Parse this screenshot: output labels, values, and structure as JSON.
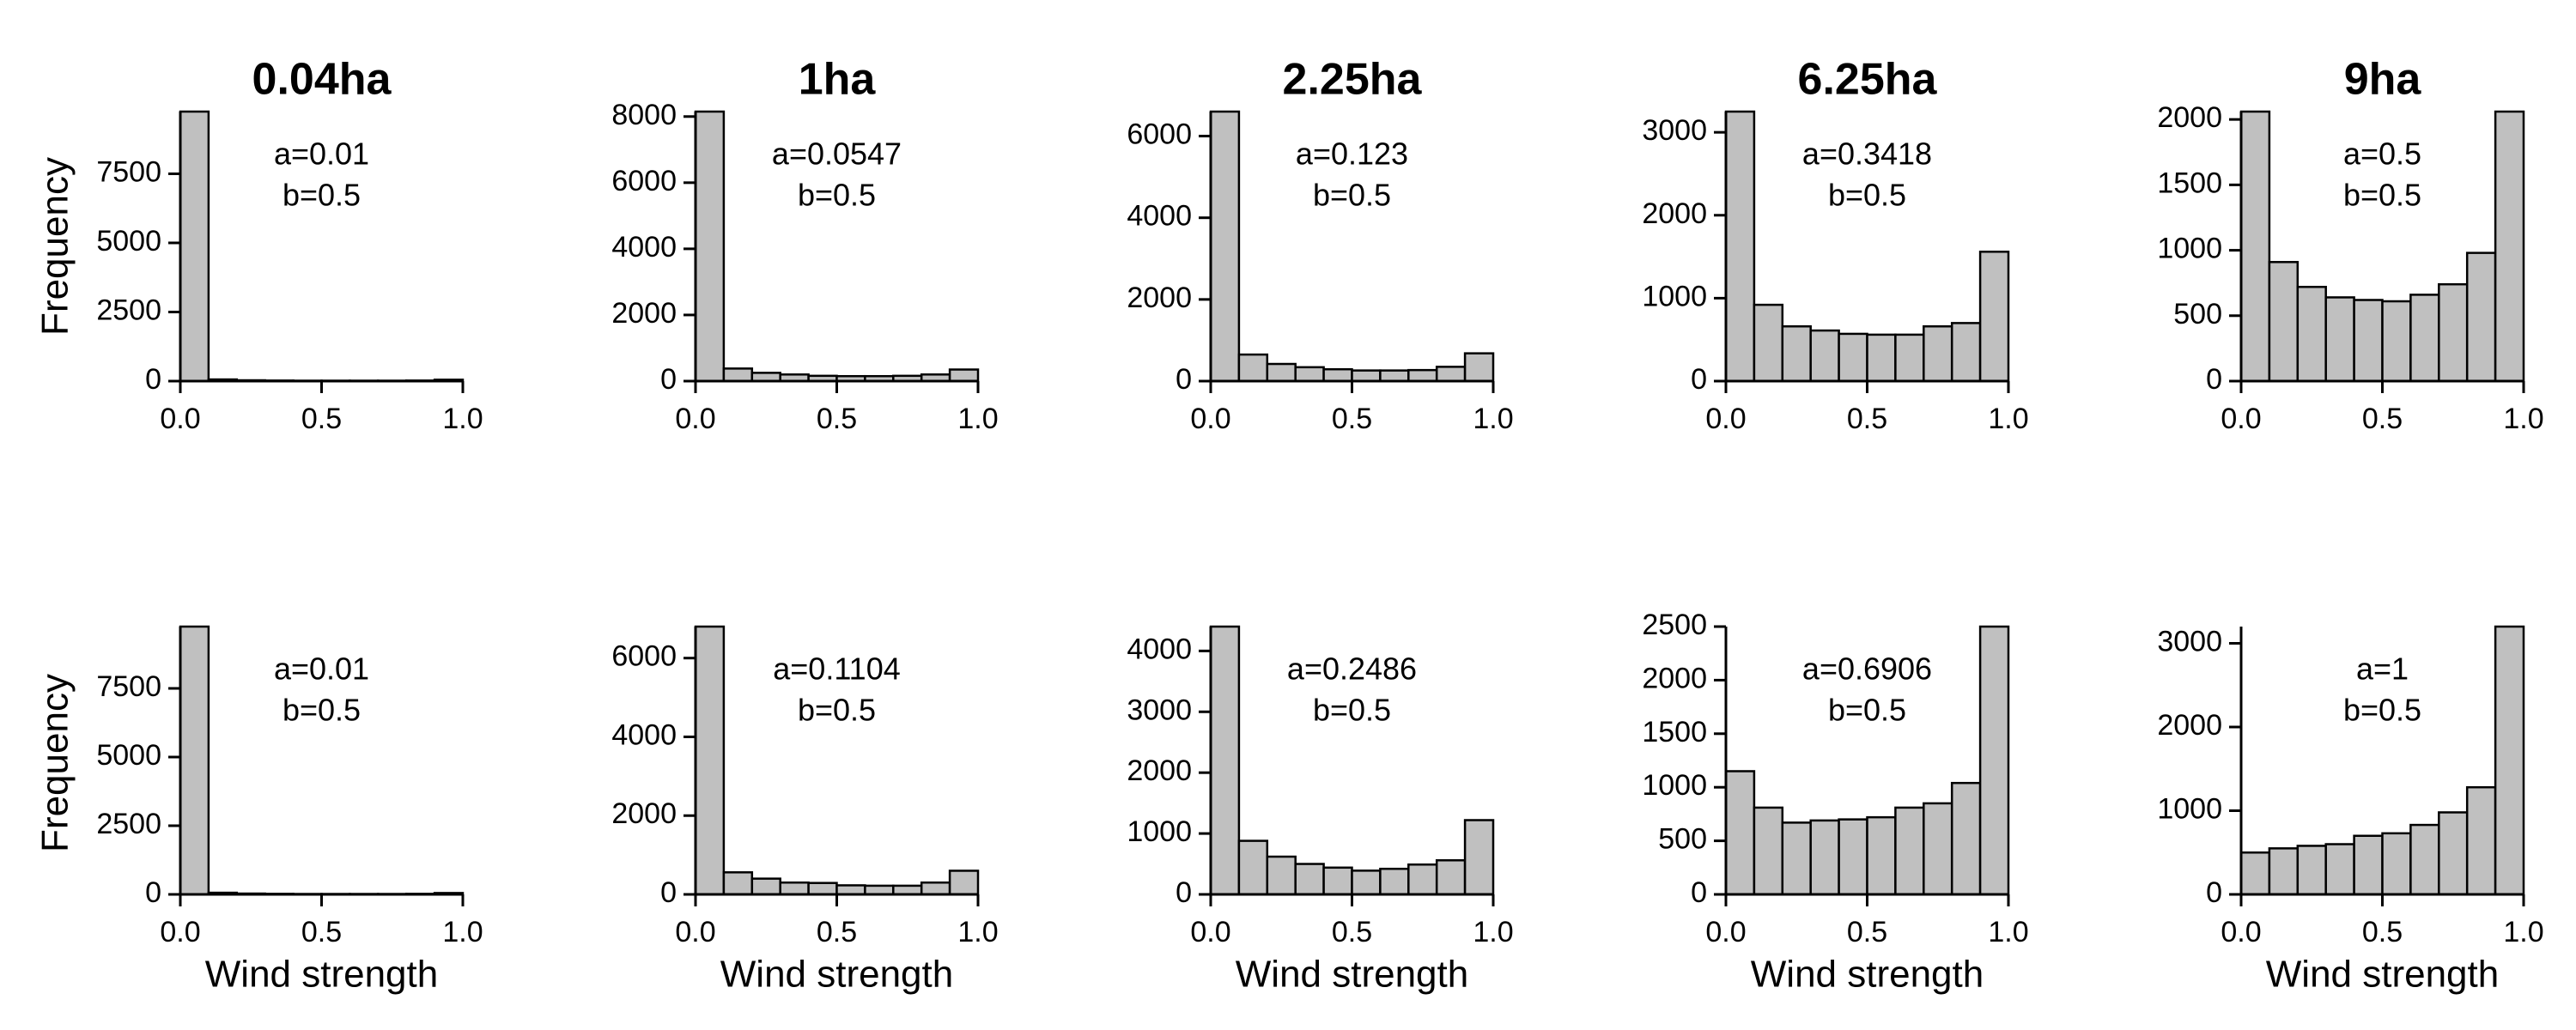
{
  "chart_data": [
    {
      "type": "histogram",
      "title": "0.04ha",
      "annotations": [
        "a=0.01",
        "b=0.5"
      ],
      "ylabel": "Frequency",
      "bins": [
        0,
        0.1,
        0.2,
        0.3,
        0.4,
        0.5,
        0.6,
        0.7,
        0.8,
        0.9,
        1.0
      ],
      "counts": [
        9750,
        60,
        30,
        20,
        15,
        15,
        15,
        15,
        20,
        50
      ],
      "xlim": [
        0,
        1
      ],
      "xticks": [
        {
          "value": 0,
          "label": "0.0"
        },
        0.5,
        {
          "value": 1,
          "label": "1.0"
        }
      ],
      "ylim": [
        0,
        9750
      ],
      "yticks": [
        0,
        2500,
        5000,
        7500
      ],
      "color": "#c0c0c0"
    },
    {
      "type": "histogram",
      "title": "1ha",
      "annotations": [
        "a=0.0547",
        "b=0.5"
      ],
      "bins": [
        0,
        0.1,
        0.2,
        0.3,
        0.4,
        0.5,
        0.6,
        0.7,
        0.8,
        0.9,
        1.0
      ],
      "counts": [
        8150,
        380,
        250,
        200,
        160,
        150,
        150,
        160,
        200,
        350
      ],
      "xlim": [
        0,
        1
      ],
      "xticks": [
        {
          "value": 0,
          "label": "0.0"
        },
        0.5,
        {
          "value": 1,
          "label": "1.0"
        }
      ],
      "ylim": [
        0,
        8150
      ],
      "yticks": [
        0,
        2000,
        4000,
        6000,
        8000
      ],
      "color": "#c0c0c0"
    },
    {
      "type": "histogram",
      "title": "2.25ha",
      "annotations": [
        "a=0.123",
        "b=0.5"
      ],
      "bins": [
        0,
        0.1,
        0.2,
        0.3,
        0.4,
        0.5,
        0.6,
        0.7,
        0.8,
        0.9,
        1.0
      ],
      "counts": [
        6600,
        650,
        420,
        340,
        290,
        260,
        260,
        270,
        350,
        680
      ],
      "xlim": [
        0,
        1
      ],
      "xticks": [
        {
          "value": 0,
          "label": "0.0"
        },
        0.5,
        {
          "value": 1,
          "label": "1.0"
        }
      ],
      "ylim": [
        0,
        6600
      ],
      "yticks": [
        0,
        2000,
        4000,
        6000
      ],
      "color": "#c0c0c0"
    },
    {
      "type": "histogram",
      "title": "6.25ha",
      "annotations": [
        "a=0.3418",
        "b=0.5"
      ],
      "bins": [
        0,
        0.1,
        0.2,
        0.3,
        0.4,
        0.5,
        0.6,
        0.7,
        0.8,
        0.9,
        1.0
      ],
      "counts": [
        3250,
        920,
        660,
        610,
        570,
        560,
        560,
        660,
        700,
        1560
      ],
      "xlim": [
        0,
        1
      ],
      "xticks": [
        {
          "value": 0,
          "label": "0.0"
        },
        0.5,
        {
          "value": 1,
          "label": "1.0"
        }
      ],
      "ylim": [
        0,
        3250
      ],
      "yticks": [
        0,
        1000,
        2000,
        3000
      ],
      "color": "#c0c0c0"
    },
    {
      "type": "histogram",
      "title": "9ha",
      "annotations": [
        "a=0.5",
        "b=0.5"
      ],
      "bins": [
        0,
        0.1,
        0.2,
        0.3,
        0.4,
        0.5,
        0.6,
        0.7,
        0.8,
        0.9,
        1.0
      ],
      "counts": [
        2060,
        910,
        720,
        640,
        620,
        610,
        660,
        740,
        980,
        2060
      ],
      "xlim": [
        0,
        1
      ],
      "xticks": [
        {
          "value": 0,
          "label": "0.0"
        },
        0.5,
        {
          "value": 1,
          "label": "1.0"
        }
      ],
      "ylim": [
        0,
        2060
      ],
      "yticks": [
        0,
        500,
        1000,
        1500,
        2000
      ],
      "color": "#c0c0c0"
    },
    {
      "type": "histogram",
      "annotations": [
        "a=0.01",
        "b=0.5"
      ],
      "ylabel": "Frequency",
      "xlabel": "Wind strength",
      "bins": [
        0,
        0.1,
        0.2,
        0.3,
        0.4,
        0.5,
        0.6,
        0.7,
        0.8,
        0.9,
        1.0
      ],
      "counts": [
        9750,
        60,
        30,
        20,
        15,
        15,
        15,
        15,
        20,
        50
      ],
      "xlim": [
        0,
        1
      ],
      "xticks": [
        {
          "value": 0,
          "label": "0.0"
        },
        0.5,
        {
          "value": 1,
          "label": "1.0"
        }
      ],
      "ylim": [
        0,
        9750
      ],
      "yticks": [
        0,
        2500,
        5000,
        7500
      ],
      "color": "#c0c0c0"
    },
    {
      "type": "histogram",
      "annotations": [
        "a=0.1104",
        "b=0.5"
      ],
      "xlabel": "Wind strength",
      "bins": [
        0,
        0.1,
        0.2,
        0.3,
        0.4,
        0.5,
        0.6,
        0.7,
        0.8,
        0.9,
        1.0
      ],
      "counts": [
        6800,
        560,
        400,
        300,
        290,
        230,
        220,
        220,
        300,
        600
      ],
      "xlim": [
        0,
        1
      ],
      "xticks": [
        {
          "value": 0,
          "label": "0.0"
        },
        0.5,
        {
          "value": 1,
          "label": "1.0"
        }
      ],
      "ylim": [
        0,
        6800
      ],
      "yticks": [
        0,
        2000,
        4000,
        6000
      ],
      "color": "#c0c0c0"
    },
    {
      "type": "histogram",
      "annotations": [
        "a=0.2486",
        "b=0.5"
      ],
      "xlabel": "Wind strength",
      "bins": [
        0,
        0.1,
        0.2,
        0.3,
        0.4,
        0.5,
        0.6,
        0.7,
        0.8,
        0.9,
        1.0
      ],
      "counts": [
        4400,
        880,
        620,
        500,
        440,
        390,
        420,
        490,
        560,
        1220
      ],
      "xlim": [
        0,
        1
      ],
      "xticks": [
        {
          "value": 0,
          "label": "0.0"
        },
        0.5,
        {
          "value": 1,
          "label": "1.0"
        }
      ],
      "ylim": [
        0,
        4400
      ],
      "yticks": [
        0,
        1000,
        2000,
        3000,
        4000
      ],
      "color": "#c0c0c0"
    },
    {
      "type": "histogram",
      "annotations": [
        "a=0.6906",
        "b=0.5"
      ],
      "xlabel": "Wind strength",
      "bins": [
        0,
        0.1,
        0.2,
        0.3,
        0.4,
        0.5,
        0.6,
        0.7,
        0.8,
        0.9,
        1.0
      ],
      "counts": [
        1150,
        810,
        670,
        690,
        700,
        720,
        810,
        850,
        1040,
        2500
      ],
      "xlim": [
        0,
        1
      ],
      "xticks": [
        {
          "value": 0,
          "label": "0.0"
        },
        0.5,
        {
          "value": 1,
          "label": "1.0"
        }
      ],
      "ylim": [
        0,
        2500
      ],
      "yticks": [
        0,
        500,
        1000,
        1500,
        2000,
        2500
      ],
      "color": "#c0c0c0"
    },
    {
      "type": "histogram",
      "annotations": [
        "a=1",
        "b=0.5"
      ],
      "xlabel": "Wind strength",
      "bins": [
        0,
        0.1,
        0.2,
        0.3,
        0.4,
        0.5,
        0.6,
        0.7,
        0.8,
        0.9,
        1.0
      ],
      "counts": [
        500,
        550,
        580,
        600,
        700,
        730,
        830,
        980,
        1280,
        3200
      ],
      "xlim": [
        0,
        1
      ],
      "xticks": [
        {
          "value": 0,
          "label": "0.0"
        },
        0.5,
        {
          "value": 1,
          "label": "1.0"
        }
      ],
      "ylim": [
        0,
        3200
      ],
      "yticks": [
        0,
        1000,
        2000,
        3000
      ],
      "color": "#c0c0c0"
    }
  ]
}
